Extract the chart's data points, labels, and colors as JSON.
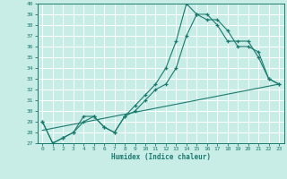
{
  "xlabel": "Humidex (Indice chaleur)",
  "bg_color": "#c8ece6",
  "grid_color": "#ffffff",
  "line_color": "#1a7a6e",
  "xmin": -0.5,
  "xmax": 23.5,
  "ymin": 27,
  "ymax": 40,
  "xticks": [
    0,
    1,
    2,
    3,
    4,
    5,
    6,
    7,
    8,
    9,
    10,
    11,
    12,
    13,
    14,
    15,
    16,
    17,
    18,
    19,
    20,
    21,
    22,
    23
  ],
  "yticks": [
    27,
    28,
    29,
    30,
    31,
    32,
    33,
    34,
    35,
    36,
    37,
    38,
    39,
    40
  ],
  "series1_x": [
    0,
    1,
    2,
    3,
    4,
    5,
    6,
    7,
    8,
    9,
    10,
    11,
    12,
    13,
    14,
    15,
    16,
    17,
    18,
    19,
    20,
    21,
    22,
    23
  ],
  "series1_y": [
    29,
    27,
    27.5,
    28,
    29,
    29.5,
    28.5,
    28,
    29.5,
    30,
    31,
    32,
    32.5,
    34,
    37,
    39,
    38.5,
    38.5,
    37.5,
    36,
    36,
    35.5,
    33,
    32.5
  ],
  "series2_x": [
    0,
    1,
    2,
    3,
    4,
    5,
    6,
    7,
    8,
    9,
    10,
    11,
    12,
    13,
    14,
    15,
    16,
    17,
    18,
    19,
    20,
    21,
    22,
    23
  ],
  "series2_y": [
    29,
    27,
    27.5,
    28,
    29.5,
    29.5,
    28.5,
    28,
    29.5,
    30.5,
    31.5,
    32.5,
    34,
    36.5,
    40,
    39,
    39,
    38,
    36.5,
    36.5,
    36.5,
    35,
    33,
    32.5
  ],
  "series3_x": [
    0,
    23
  ],
  "series3_y": [
    28.2,
    32.5
  ]
}
